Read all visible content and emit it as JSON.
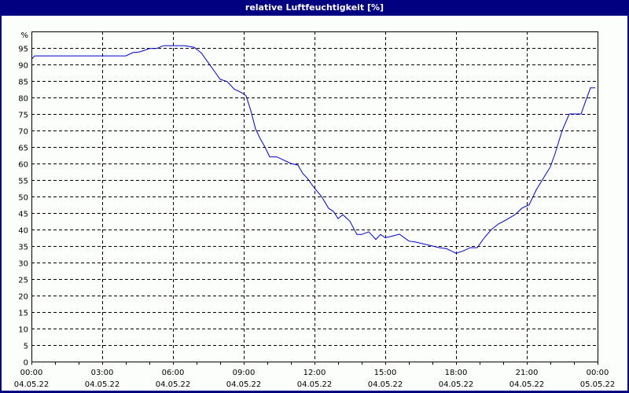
{
  "window": {
    "title": "relative Luftfeuchtigkeit [%]"
  },
  "colors": {
    "frame": "#000080",
    "background": "#fbfefb",
    "line": "#0000cc",
    "grid": "#000000"
  },
  "chart_data": {
    "type": "line",
    "title": "relative Luftfeuchtigkeit [%]",
    "xlabel": "",
    "ylabel": "%",
    "ylim": [
      0,
      100
    ],
    "xlim": [
      "04.05.22 00:00",
      "05.05.22 00:00"
    ],
    "grid": true,
    "grid_style": "dashed",
    "y_ticks": [
      "0",
      "5",
      "10",
      "15",
      "20",
      "25",
      "30",
      "35",
      "40",
      "45",
      "50",
      "55",
      "60",
      "65",
      "70",
      "75",
      "80",
      "85",
      "90",
      "95"
    ],
    "y_unit_label": "%",
    "x_ticks": [
      {
        "time": "00:00",
        "date": "04.05.22"
      },
      {
        "time": "03:00",
        "date": "04.05.22"
      },
      {
        "time": "06:00",
        "date": "04.05.22"
      },
      {
        "time": "09:00",
        "date": "04.05.22"
      },
      {
        "time": "12:00",
        "date": "04.05.22"
      },
      {
        "time": "15:00",
        "date": "04.05.22"
      },
      {
        "time": "18:00",
        "date": "04.05.22"
      },
      {
        "time": "21:00",
        "date": "04.05.22"
      },
      {
        "time": "00:00",
        "date": "05.05.22"
      }
    ],
    "series": [
      {
        "name": "relative Luftfeuchtigkeit",
        "x_hours": [
          0.0,
          0.13,
          1.0,
          2.0,
          3.0,
          4.0,
          4.3,
          4.6,
          5.0,
          5.3,
          5.6,
          6.0,
          6.5,
          6.9,
          7.2,
          7.5,
          7.8,
          8.0,
          8.3,
          8.6,
          8.9,
          9.1,
          9.3,
          9.5,
          9.7,
          9.9,
          10.1,
          10.4,
          10.7,
          11.0,
          11.3,
          11.5,
          11.7,
          12.0,
          12.3,
          12.6,
          12.8,
          13.0,
          13.2,
          13.5,
          13.8,
          14.0,
          14.3,
          14.6,
          14.8,
          15.0,
          15.3,
          15.6,
          16.0,
          16.3,
          16.7,
          17.0,
          17.3,
          17.6,
          17.8,
          18.0,
          18.3,
          18.6,
          18.9,
          19.2,
          19.5,
          19.8,
          20.1,
          20.5,
          20.8,
          21.1,
          21.4,
          21.7,
          22.0,
          22.2,
          22.5,
          22.8,
          23.0,
          23.3,
          23.5,
          23.7,
          23.9
        ],
        "values": [
          91.5,
          92.6,
          92.6,
          92.6,
          92.6,
          92.6,
          93.6,
          93.8,
          94.8,
          94.8,
          95.7,
          95.7,
          95.7,
          95.2,
          93.5,
          90.5,
          87.5,
          85.5,
          84.8,
          82.5,
          81.5,
          80.5,
          76.0,
          70.5,
          67.5,
          65.0,
          62.0,
          62.0,
          61.0,
          60.0,
          59.5,
          57.0,
          55.5,
          52.5,
          50.0,
          46.4,
          45.5,
          43.3,
          44.5,
          42.5,
          38.5,
          38.5,
          39.3,
          37.0,
          38.5,
          37.5,
          38.0,
          38.6,
          36.5,
          36.2,
          35.5,
          35.0,
          34.5,
          34.2,
          33.5,
          32.8,
          33.5,
          34.5,
          34.5,
          37.5,
          40.0,
          41.7,
          42.8,
          44.5,
          46.5,
          47.5,
          52.0,
          55.5,
          59.0,
          63.0,
          70.0,
          75.0,
          75.0,
          75.0,
          79.0,
          82.9,
          82.9
        ]
      }
    ]
  }
}
